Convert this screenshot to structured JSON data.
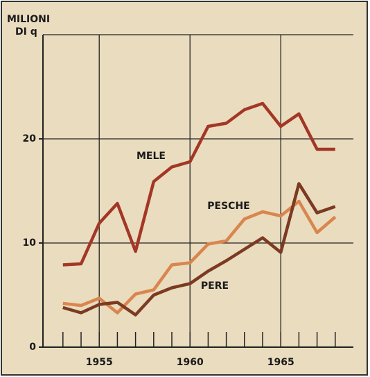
{
  "chart_data": {
    "type": "line",
    "y_label": [
      "MILIONI",
      "DI q"
    ],
    "x": [
      1953,
      1954,
      1955,
      1956,
      1957,
      1958,
      1959,
      1960,
      1961,
      1962,
      1963,
      1964,
      1965,
      1966,
      1967,
      1968
    ],
    "series": [
      {
        "name": "MELE",
        "color": "#a33726",
        "values": [
          7.9,
          8.0,
          11.9,
          13.8,
          9.2,
          15.9,
          17.3,
          17.8,
          21.2,
          21.5,
          22.8,
          23.4,
          21.2,
          22.4,
          19.0,
          19.0
        ]
      },
      {
        "name": "PESCHE",
        "color": "#d9864e",
        "values": [
          4.2,
          4.0,
          4.7,
          3.3,
          5.1,
          5.5,
          7.9,
          8.1,
          9.9,
          10.2,
          12.3,
          13.0,
          12.6,
          14.0,
          11.0,
          12.5
        ]
      },
      {
        "name": "PERE",
        "color": "#7b3a22",
        "values": [
          3.8,
          3.3,
          4.1,
          4.3,
          3.1,
          5.0,
          5.7,
          6.1,
          7.3,
          8.3,
          9.4,
          10.5,
          9.1,
          15.7,
          12.9,
          13.5
        ]
      }
    ],
    "xlim": [
      1951.9,
      1969
    ],
    "xticks": [
      1955,
      1960,
      1965
    ],
    "ylim": [
      0,
      30
    ],
    "yticks": [
      0,
      10,
      20
    ],
    "grid": true
  }
}
